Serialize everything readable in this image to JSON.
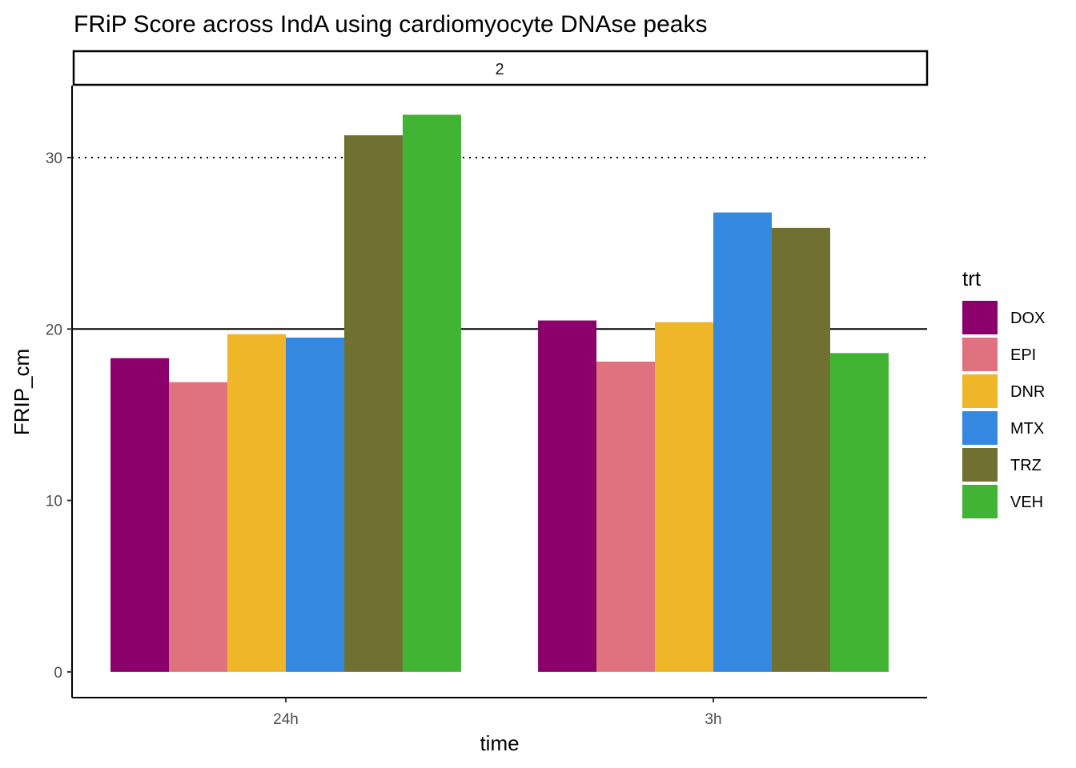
{
  "chart_data": {
    "type": "bar",
    "title": "FRiP Score across IndA using cardiomyocyte DNAse peaks",
    "facet_label": "2",
    "xlabel": "time",
    "ylabel": "FRIP_cm",
    "categories": [
      "24h",
      "3h"
    ],
    "ylim": [
      -1.5,
      34.2
    ],
    "yticks": [
      0,
      10,
      20,
      30
    ],
    "legend_title": "trt",
    "legend_position": "right",
    "grid": false,
    "reference_lines": [
      {
        "y": 20,
        "style": "solid"
      },
      {
        "y": 30,
        "style": "dotted"
      }
    ],
    "series": [
      {
        "name": "DOX",
        "color": "#8B006B",
        "values": [
          18.3,
          20.5
        ]
      },
      {
        "name": "EPI",
        "color": "#E0717E",
        "values": [
          16.9,
          18.1
        ]
      },
      {
        "name": "DNR",
        "color": "#F0B62A",
        "values": [
          19.7,
          20.4
        ]
      },
      {
        "name": "MTX",
        "color": "#3588E0",
        "values": [
          19.5,
          26.8
        ]
      },
      {
        "name": "TRZ",
        "color": "#707032",
        "values": [
          31.3,
          25.9
        ]
      },
      {
        "name": "VEH",
        "color": "#41B433",
        "values": [
          32.5,
          18.6
        ]
      }
    ]
  }
}
